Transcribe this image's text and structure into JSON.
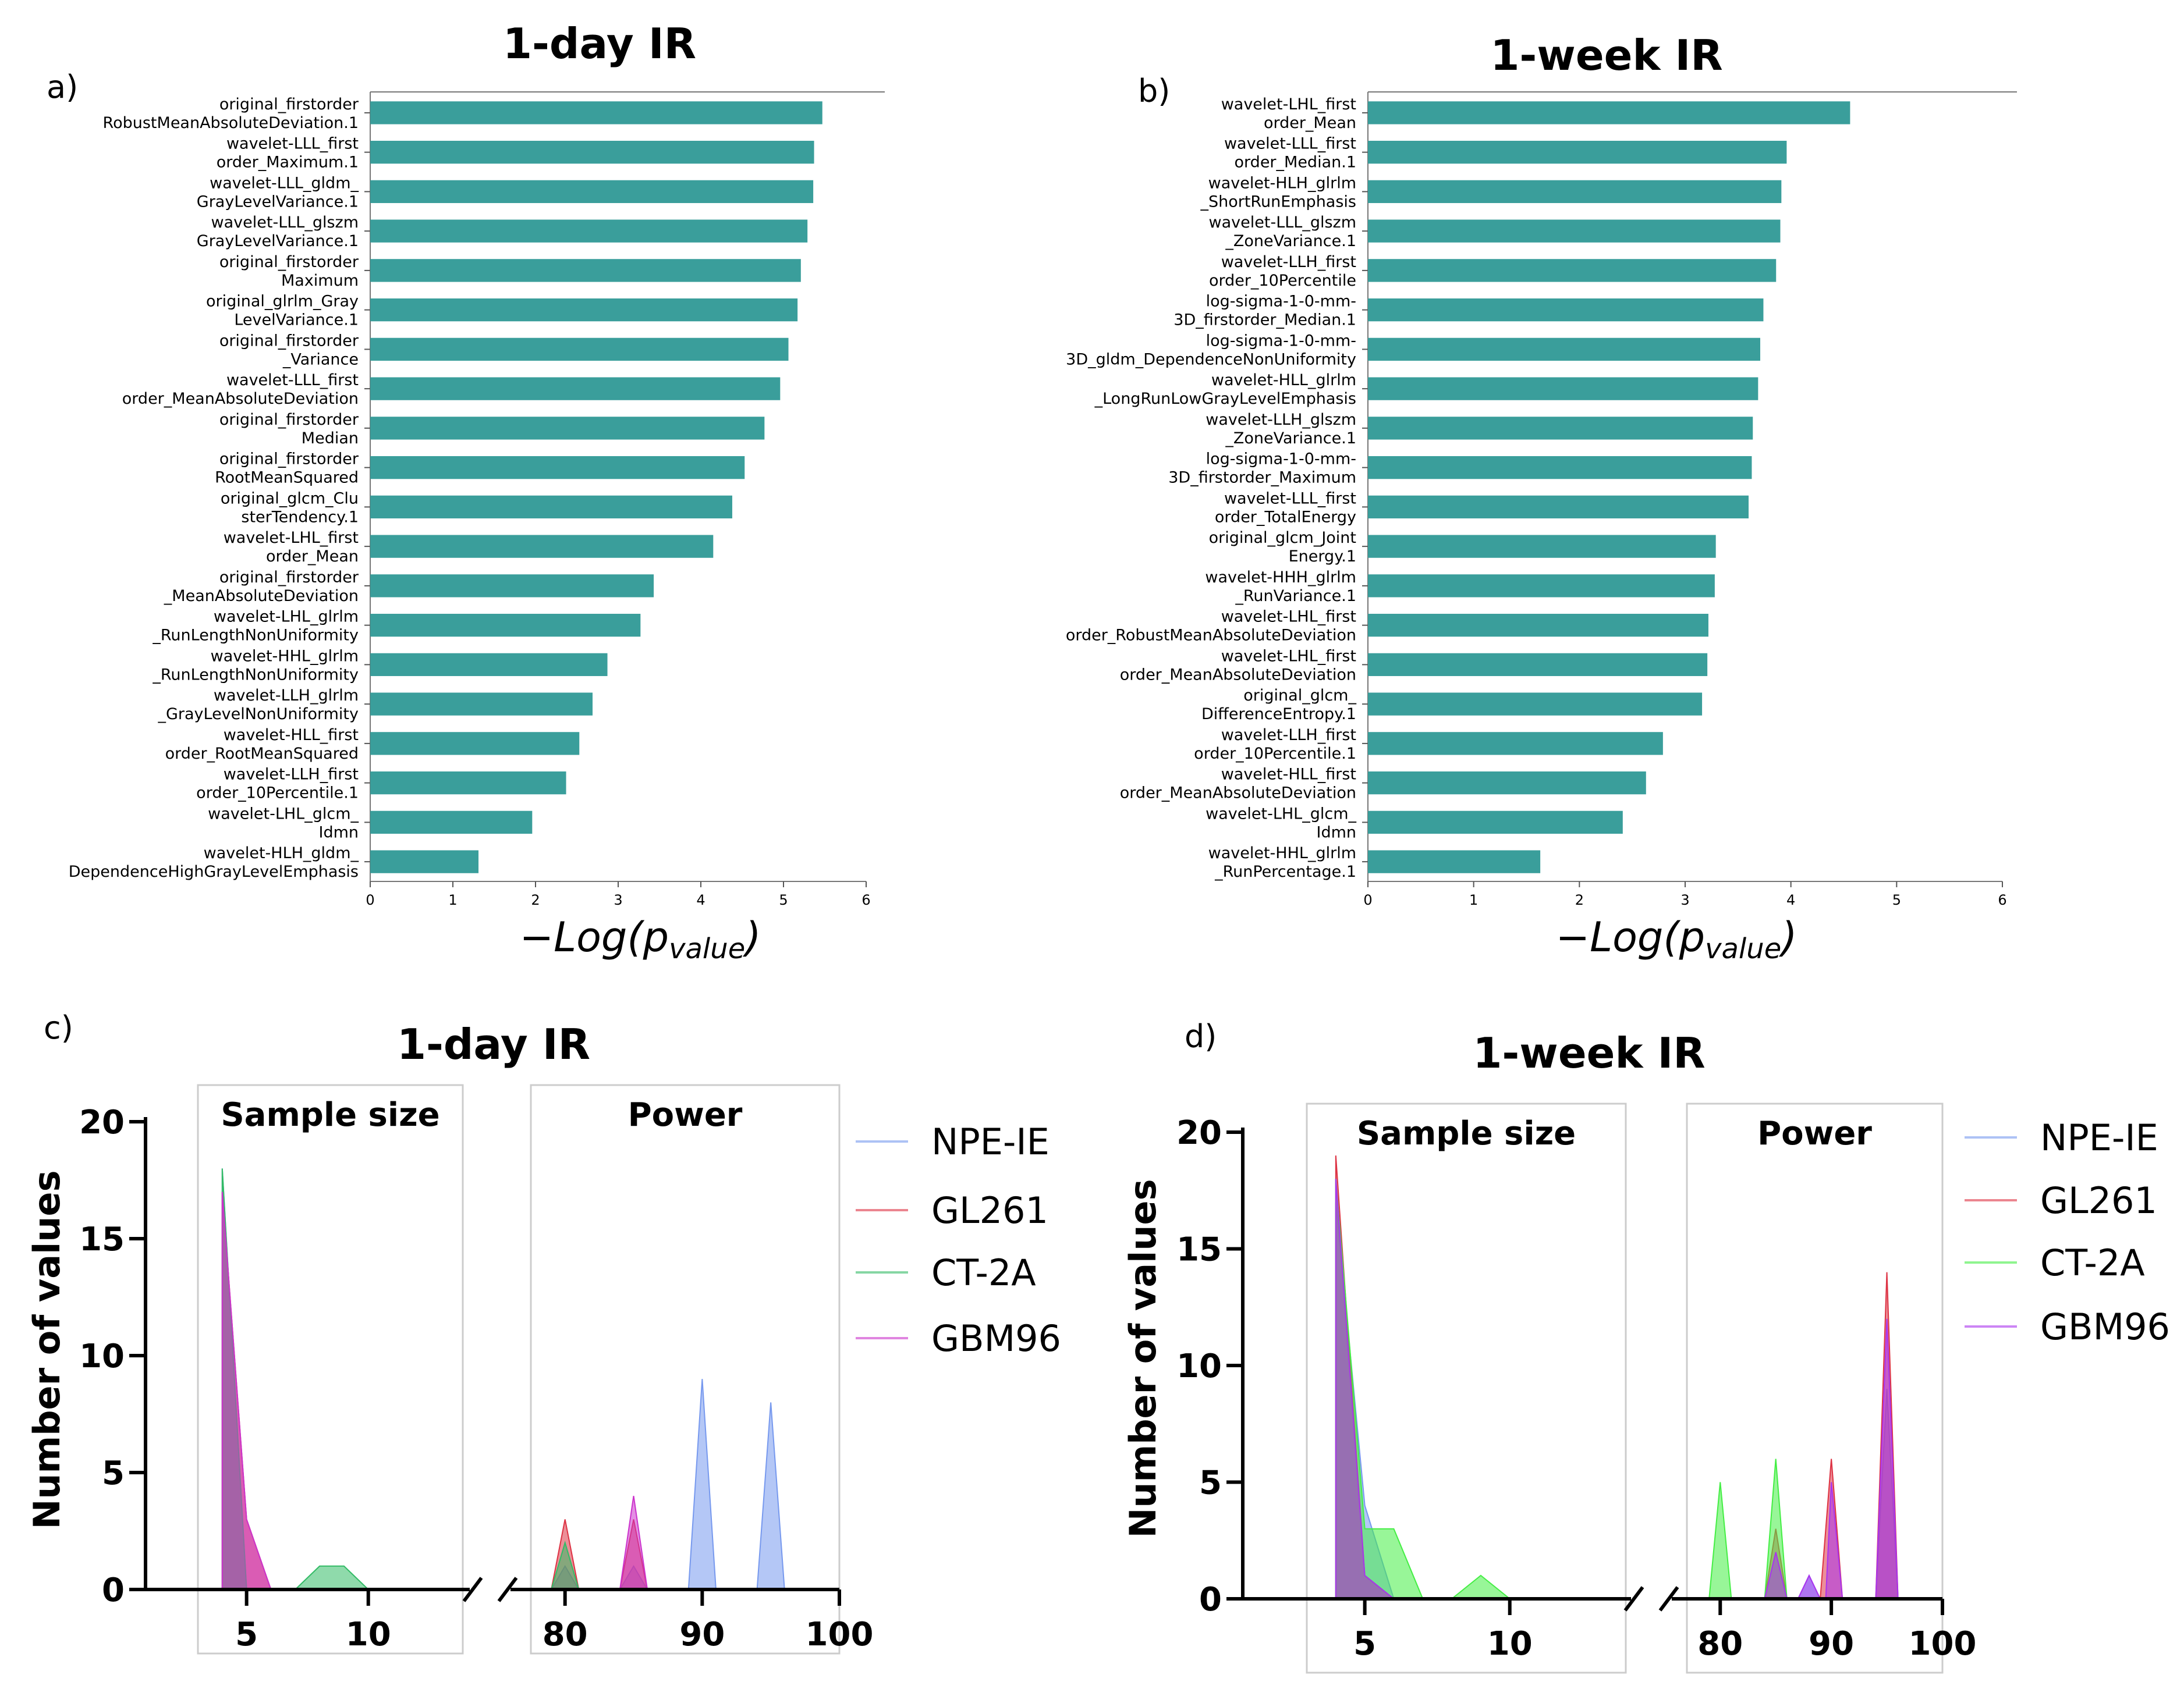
{
  "bar_charts": [
    {
      "id": "a",
      "panel_label": "a)",
      "title": "1-day IR",
      "xlabel_main": "−Log(p",
      "xlabel_sub": "value",
      "xlabel_end": ")",
      "xlim": [
        0,
        6
      ],
      "xticks": [
        0,
        1,
        2,
        3,
        4,
        5,
        6
      ],
      "bar_color": "#3a9e9b",
      "bars": [
        {
          "label": [
            "original_firstorder",
            "RobustMeanAbsoluteDeviation.1"
          ],
          "value": 5.47
        },
        {
          "label": [
            "wavelet-LLL_first",
            "order_Maximum.1"
          ],
          "value": 5.37
        },
        {
          "label": [
            "wavelet-LLL_gldm_",
            "GrayLevelVariance.1"
          ],
          "value": 5.36
        },
        {
          "label": [
            "wavelet-LLL_glszm",
            "GrayLevelVariance.1"
          ],
          "value": 5.29
        },
        {
          "label": [
            "original_firstorder",
            "Maximum"
          ],
          "value": 5.21
        },
        {
          "label": [
            "original_glrlm_Gray",
            "LevelVariance.1"
          ],
          "value": 5.17
        },
        {
          "label": [
            "original_firstorder",
            "_Variance"
          ],
          "value": 5.06
        },
        {
          "label": [
            "wavelet-LLL_first",
            "order_MeanAbsoluteDeviation"
          ],
          "value": 4.96
        },
        {
          "label": [
            "original_firstorder",
            "Median"
          ],
          "value": 4.77
        },
        {
          "label": [
            "original_firstorder",
            "RootMeanSquared"
          ],
          "value": 4.53
        },
        {
          "label": [
            "original_glcm_Clu",
            "sterTendency.1"
          ],
          "value": 4.38
        },
        {
          "label": [
            "wavelet-LHL_first",
            "order_Mean"
          ],
          "value": 4.15
        },
        {
          "label": [
            "original_firstorder",
            "_MeanAbsoluteDeviation"
          ],
          "value": 3.43
        },
        {
          "label": [
            "wavelet-LHL_glrlm",
            "_RunLengthNonUniformity"
          ],
          "value": 3.27
        },
        {
          "label": [
            "wavelet-HHL_glrlm",
            "_RunLengthNonUniformity"
          ],
          "value": 2.87
        },
        {
          "label": [
            "wavelet-LLH_glrlm",
            "_GrayLevelNonUniformity"
          ],
          "value": 2.69
        },
        {
          "label": [
            "wavelet-HLL_first",
            "order_RootMeanSquared"
          ],
          "value": 2.53
        },
        {
          "label": [
            "wavelet-LLH_first",
            "order_10Percentile.1"
          ],
          "value": 2.37
        },
        {
          "label": [
            "wavelet-LHL_glcm_",
            "Idmn"
          ],
          "value": 1.96
        },
        {
          "label": [
            "wavelet-HLH_gldm_",
            "DependenceHighGrayLevelEmphasis"
          ],
          "value": 1.31
        }
      ]
    },
    {
      "id": "b",
      "panel_label": "b)",
      "title": "1-week IR",
      "xlabel_main": "−Log(p",
      "xlabel_sub": "value",
      "xlabel_end": ")",
      "xlim": [
        0,
        6
      ],
      "xticks": [
        0,
        1,
        2,
        3,
        4,
        5,
        6
      ],
      "bar_color": "#3a9e9b",
      "bars": [
        {
          "label": [
            "wavelet-LHL_first",
            "order_Mean"
          ],
          "value": 4.56
        },
        {
          "label": [
            "wavelet-LLL_first",
            "order_Median.1"
          ],
          "value": 3.96
        },
        {
          "label": [
            "wavelet-HLH_glrlm",
            "_ShortRunEmphasis"
          ],
          "value": 3.91
        },
        {
          "label": [
            "wavelet-LLL_glszm",
            "_ZoneVariance.1"
          ],
          "value": 3.9
        },
        {
          "label": [
            "wavelet-LLH_first",
            "order_10Percentile"
          ],
          "value": 3.86
        },
        {
          "label": [
            "log-sigma-1-0-mm-",
            "3D_firstorder_Median.1"
          ],
          "value": 3.74
        },
        {
          "label": [
            "log-sigma-1-0-mm-",
            "3D_gldm_DependenceNonUniformity"
          ],
          "value": 3.71
        },
        {
          "label": [
            "wavelet-HLL_glrlm",
            "_LongRunLowGrayLevelEmphasis"
          ],
          "value": 3.69
        },
        {
          "label": [
            "wavelet-LLH_glszm",
            "_ZoneVariance.1"
          ],
          "value": 3.64
        },
        {
          "label": [
            "log-sigma-1-0-mm-",
            "3D_firstorder_Maximum"
          ],
          "value": 3.63
        },
        {
          "label": [
            "wavelet-LLL_first",
            "order_TotalEnergy"
          ],
          "value": 3.6
        },
        {
          "label": [
            "original_glcm_Joint",
            "Energy.1"
          ],
          "value": 3.29
        },
        {
          "label": [
            "wavelet-HHH_glrlm",
            "_RunVariance.1"
          ],
          "value": 3.28
        },
        {
          "label": [
            "wavelet-LHL_first",
            "order_RobustMeanAbsoluteDeviation"
          ],
          "value": 3.22
        },
        {
          "label": [
            "wavelet-LHL_first",
            "order_MeanAbsoluteDeviation"
          ],
          "value": 3.21
        },
        {
          "label": [
            "original_glcm_",
            "DifferenceEntropy.1"
          ],
          "value": 3.16
        },
        {
          "label": [
            "wavelet-LLH_first",
            "order_10Percentile.1"
          ],
          "value": 2.79
        },
        {
          "label": [
            "wavelet-HLL_first",
            "order_MeanAbsoluteDeviation"
          ],
          "value": 2.63
        },
        {
          "label": [
            "wavelet-LHL_glcm_",
            "Idmn"
          ],
          "value": 2.41
        },
        {
          "label": [
            "wavelet-HHL_glrlm",
            "_RunPercentage.1"
          ],
          "value": 1.63
        }
      ]
    }
  ],
  "freq_charts": [
    {
      "id": "c",
      "panel_label": "c)",
      "title": "1-day IR",
      "ylabel": "Number of values",
      "ylim": [
        0,
        20
      ],
      "yticks": [
        0,
        5,
        10,
        15,
        20
      ],
      "left_title": "Sample size",
      "right_title": "Power",
      "left_xlim": [
        3,
        14
      ],
      "left_xticks": [
        5,
        10
      ],
      "right_xlim": [
        77,
        100
      ],
      "right_xticks": [
        80,
        90,
        100
      ],
      "series": [
        {
          "name": "NPE-IE",
          "color": "#7799ee",
          "left": [
            [
              4,
              18
            ],
            [
              5,
              0
            ]
          ],
          "right": [
            [
              79,
              0
            ],
            [
              80,
              1
            ],
            [
              81,
              0
            ],
            [
              84,
              0
            ],
            [
              85,
              1
            ],
            [
              86,
              0
            ],
            [
              89,
              0
            ],
            [
              90,
              9
            ],
            [
              91,
              0
            ],
            [
              94,
              0
            ],
            [
              95,
              8
            ],
            [
              96,
              0
            ]
          ]
        },
        {
          "name": "GL261",
          "color": "#dd3344",
          "left": [
            [
              4,
              17
            ],
            [
              5,
              3
            ],
            [
              6,
              0
            ]
          ],
          "right": [
            [
              79,
              0
            ],
            [
              80,
              3
            ],
            [
              81,
              0
            ],
            [
              84,
              0
            ],
            [
              85,
              3
            ],
            [
              86,
              0
            ]
          ]
        },
        {
          "name": "CT-2A",
          "color": "#33bb66",
          "left": [
            [
              4,
              18
            ],
            [
              5,
              0
            ],
            [
              7,
              0
            ],
            [
              8,
              1
            ],
            [
              9,
              1
            ],
            [
              10,
              0
            ]
          ],
          "right": [
            [
              79,
              0
            ],
            [
              80,
              2
            ],
            [
              81,
              0
            ]
          ]
        },
        {
          "name": "GBM96",
          "color": "#cc33cc",
          "left": [
            [
              4,
              17
            ],
            [
              5,
              3
            ],
            [
              6,
              0
            ]
          ],
          "right": [
            [
              84,
              0
            ],
            [
              85,
              4
            ],
            [
              86,
              0
            ]
          ]
        }
      ]
    },
    {
      "id": "d",
      "panel_label": "d)",
      "title": "1-week IR",
      "ylabel": "Number of values",
      "ylim": [
        0,
        20
      ],
      "yticks": [
        0,
        5,
        10,
        15,
        20
      ],
      "left_title": "Sample size",
      "right_title": "Power",
      "left_xlim": [
        3,
        14
      ],
      "left_xticks": [
        5,
        10
      ],
      "right_xlim": [
        77,
        100
      ],
      "right_xticks": [
        80,
        90,
        100
      ],
      "series": [
        {
          "name": "NPE-IE",
          "color": "#7799ee",
          "left": [
            [
              4,
              17
            ],
            [
              5,
              4
            ],
            [
              6,
              0
            ]
          ],
          "right": [
            [
              87,
              0
            ],
            [
              88,
              1
            ],
            [
              89,
              0
            ],
            [
              94,
              0
            ],
            [
              95,
              9
            ],
            [
              96,
              0
            ]
          ]
        },
        {
          "name": "GL261",
          "color": "#dd3344",
          "left": [
            [
              4,
              19
            ],
            [
              5,
              1
            ],
            [
              6,
              0
            ]
          ],
          "right": [
            [
              84,
              0
            ],
            [
              85,
              3
            ],
            [
              86,
              0
            ],
            [
              89,
              0
            ],
            [
              90,
              6
            ],
            [
              91,
              0
            ],
            [
              94,
              0
            ],
            [
              95,
              14
            ],
            [
              96,
              0
            ]
          ]
        },
        {
          "name": "CT-2A",
          "color": "#44ee44",
          "left": [
            [
              4,
              18
            ],
            [
              5,
              3
            ],
            [
              6,
              3
            ],
            [
              7,
              0
            ],
            [
              8,
              0
            ],
            [
              9,
              1
            ],
            [
              10,
              0
            ]
          ],
          "right": [
            [
              79,
              0
            ],
            [
              80,
              5
            ],
            [
              81,
              0
            ],
            [
              84,
              0
            ],
            [
              85,
              6
            ],
            [
              86,
              0
            ]
          ]
        },
        {
          "name": "GBM96",
          "color": "#aa33ee",
          "left": [
            [
              4,
              18
            ],
            [
              5,
              1
            ],
            [
              6,
              0
            ]
          ],
          "right": [
            [
              84,
              0
            ],
            [
              85,
              2
            ],
            [
              86,
              0
            ],
            [
              87,
              0
            ],
            [
              88,
              1
            ],
            [
              89,
              0
            ],
            [
              89.5,
              0
            ],
            [
              90,
              5
            ],
            [
              91,
              0
            ],
            [
              94,
              0
            ],
            [
              95,
              12
            ],
            [
              96,
              0
            ]
          ]
        }
      ]
    }
  ]
}
